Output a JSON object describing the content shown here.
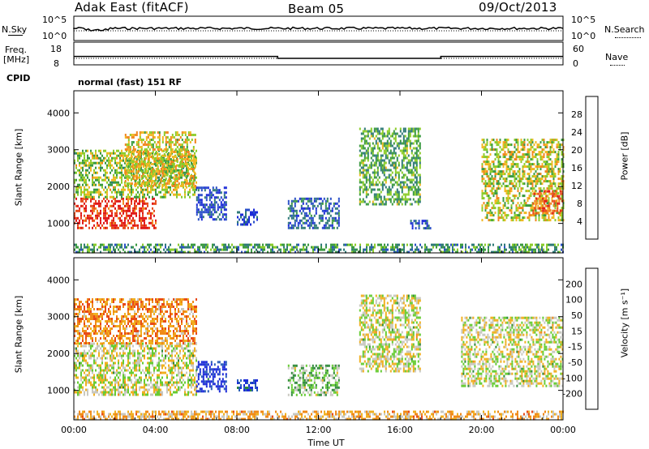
{
  "header": {
    "station": "Adak East (fitACF)",
    "beam": "Beam 05",
    "date": "09/Oct/2013"
  },
  "nsky_panel": {
    "left_label": "N.Sky",
    "right_label": "N.Search",
    "left_ticks": [
      "10^5",
      "10^0"
    ],
    "right_ticks": [
      "10^5",
      "10^0"
    ]
  },
  "freq_panel": {
    "left_label_line1": "Freq.",
    "left_label_line2": "[MHz]",
    "right_label": "Nave",
    "left_ticks": [
      "18",
      "8"
    ],
    "right_ticks": [
      "60",
      "0"
    ],
    "cpid_label": "CPID",
    "cpid_text": "normal (fast) 151 RF",
    "freq_series_mhz": [
      {
        "t_hours": 0,
        "freq": 11.5
      },
      {
        "t_hours": 10,
        "freq": 11.5
      },
      {
        "t_hours": 10,
        "freq": 10.5
      },
      {
        "t_hours": 18,
        "freq": 10.5
      },
      {
        "t_hours": 18,
        "freq": 11.5
      },
      {
        "t_hours": 24,
        "freq": 11.5
      }
    ]
  },
  "chart_data": [
    {
      "type": "heatmap",
      "name": "power-panel",
      "ylabel": "Slant Range [km]",
      "xlabel": "",
      "x_ticks": [
        "00:00",
        "04:00",
        "08:00",
        "12:00",
        "16:00",
        "20:00",
        "00:00"
      ],
      "xlim_hours": [
        0,
        24
      ],
      "y_ticks": [
        1000,
        2000,
        3000,
        4000
      ],
      "ylim": [
        200,
        4600
      ],
      "colorbar_label": "Power [dB]",
      "colorbar_ticks": [
        "4",
        "8",
        "12",
        "16",
        "20",
        "24",
        "28"
      ],
      "colorbar_colors": [
        "#1c2bd8",
        "#2a50c8",
        "#2f7a78",
        "#3a9a40",
        "#8ccc2a",
        "#f0b820",
        "#f0841c",
        "#e84a1c",
        "#e01818"
      ],
      "regions": [
        {
          "t0": 0.0,
          "t1": 4.0,
          "r0": 900,
          "r1": 1700,
          "level": 0.9
        },
        {
          "t0": 0.0,
          "t1": 6.0,
          "r0": 1700,
          "r1": 3000,
          "level": 0.5
        },
        {
          "t0": 2.5,
          "t1": 6.0,
          "r0": 2000,
          "r1": 3500,
          "level": 0.6
        },
        {
          "t0": 6.0,
          "t1": 7.5,
          "r0": 1100,
          "r1": 2000,
          "level": 0.15
        },
        {
          "t0": 8.0,
          "t1": 9.0,
          "r0": 1000,
          "r1": 1400,
          "level": 0.15
        },
        {
          "t0": 10.5,
          "t1": 13.0,
          "r0": 900,
          "r1": 1700,
          "level": 0.2
        },
        {
          "t0": 14.0,
          "t1": 17.0,
          "r0": 1500,
          "r1": 3600,
          "level": 0.4
        },
        {
          "t0": 16.5,
          "t1": 17.5,
          "r0": 900,
          "r1": 1100,
          "level": 0.15
        },
        {
          "t0": 20.0,
          "t1": 24.0,
          "r0": 1100,
          "r1": 3300,
          "level": 0.55
        },
        {
          "t0": 22.5,
          "t1": 24.0,
          "r0": 1300,
          "r1": 1900,
          "level": 0.8
        },
        {
          "t0": 0.0,
          "t1": 24.0,
          "r0": 200,
          "r1": 450,
          "level": 0.35
        }
      ]
    },
    {
      "type": "heatmap",
      "name": "velocity-panel",
      "ylabel": "Slant Range [km]",
      "xlabel": "Time UT",
      "x_ticks": [
        "00:00",
        "04:00",
        "08:00",
        "12:00",
        "16:00",
        "20:00",
        "00:00"
      ],
      "xlim_hours": [
        0,
        24
      ],
      "y_ticks": [
        1000,
        2000,
        3000,
        4000
      ],
      "ylim": [
        200,
        4600
      ],
      "colorbar_label": "Velocity [m s⁻¹]",
      "colorbar_ticks": [
        "200",
        "100",
        "50",
        "15",
        "-15",
        "-50",
        "-100",
        "-200"
      ],
      "colorbar_colors": [
        "#1c2bd8",
        "#2a5fb8",
        "#2f8a3a",
        "#66cc33",
        "#c8c8c0",
        "#f0b020",
        "#f08a18",
        "#e84a18",
        "#e01818"
      ],
      "regions": [
        {
          "t0": 0.0,
          "t1": 6.0,
          "r0": 900,
          "r1": 2300,
          "level": 0.5
        },
        {
          "t0": 0.0,
          "t1": 6.0,
          "r0": 2300,
          "r1": 3500,
          "level": 0.7
        },
        {
          "t0": 6.0,
          "t1": 7.5,
          "r0": 1000,
          "r1": 1800,
          "level": 0.05
        },
        {
          "t0": 8.0,
          "t1": 9.0,
          "r0": 1000,
          "r1": 1300,
          "level": 0.1
        },
        {
          "t0": 10.5,
          "t1": 13.0,
          "r0": 900,
          "r1": 1700,
          "level": 0.4
        },
        {
          "t0": 14.0,
          "t1": 17.0,
          "r0": 1500,
          "r1": 3600,
          "level": 0.5
        },
        {
          "t0": 19.0,
          "t1": 24.0,
          "r0": 1100,
          "r1": 3000,
          "level": 0.5
        },
        {
          "t0": 0.0,
          "t1": 24.0,
          "r0": 200,
          "r1": 450,
          "level": 0.62
        }
      ]
    }
  ]
}
